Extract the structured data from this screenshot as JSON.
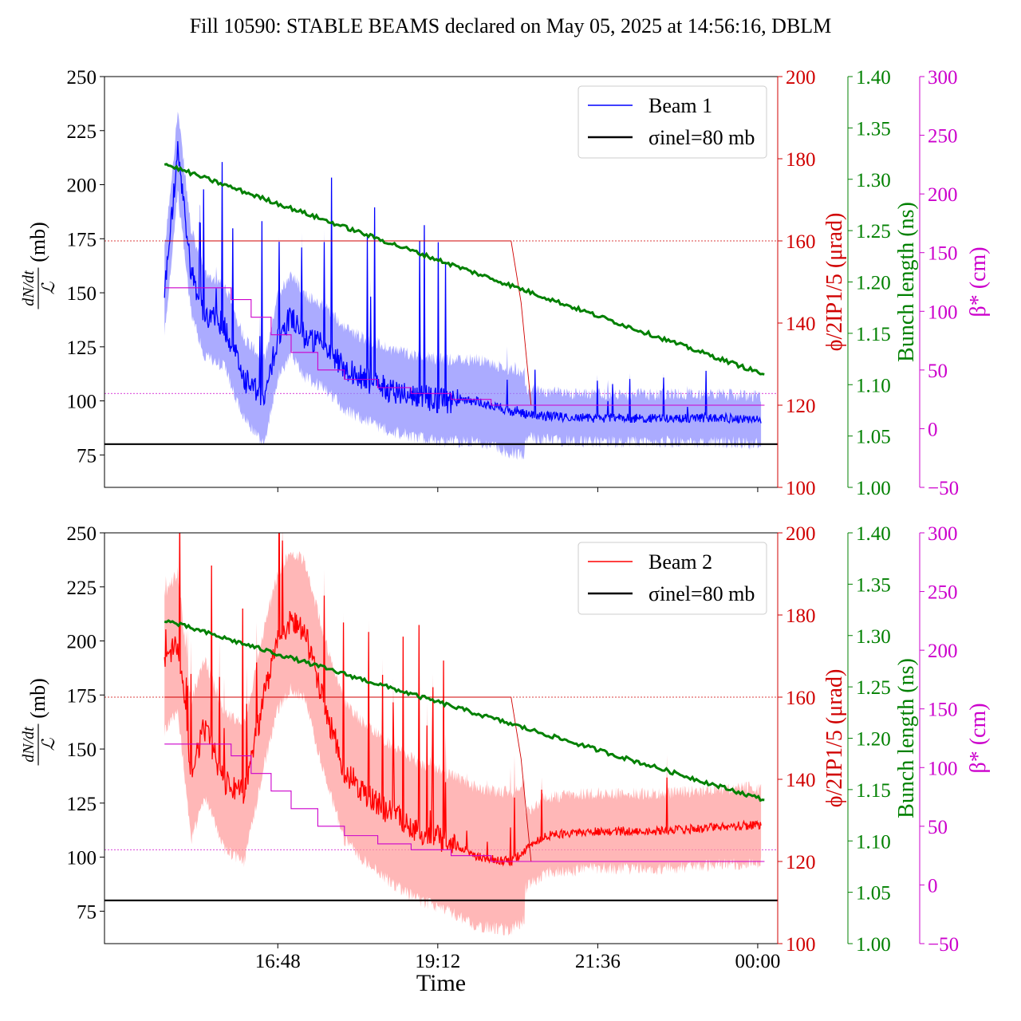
{
  "title": "Fill 10590: STABLE BEAMS declared on May 05, 2025 at 14:56:16, DBLM",
  "xlabel": "Time",
  "x_ticks": [
    "16:48",
    "19:12",
    "21:36",
    "00:00"
  ],
  "colors": {
    "beam1": "#0000ff",
    "beam1_band": "#8888ff",
    "beam2": "#ff0000",
    "beam2_band": "#ff9999",
    "angle": "#d00000",
    "bunch": "#008000",
    "beta": "#cc00cc",
    "sigma": "#000000"
  },
  "chart_data": [
    {
      "type": "line",
      "panel": "top",
      "ylabel": {
        "num": "dN/dt",
        "den": "ℒ",
        "unit": "(mb)"
      },
      "ylim": [
        60,
        250
      ],
      "yticks": [
        "75",
        "100",
        "125",
        "150",
        "175",
        "200",
        "225",
        "250"
      ],
      "right_axes": [
        {
          "label": "ϕ/2IP1/5 (μrad)",
          "ylim": [
            100,
            200
          ],
          "ticks": [
            "100",
            "120",
            "140",
            "160",
            "180",
            "200"
          ]
        },
        {
          "label": "Bunch length (ns)",
          "ylim": [
            1.0,
            1.4
          ],
          "ticks": [
            "1.00",
            "1.05",
            "1.10",
            "1.15",
            "1.20",
            "1.25",
            "1.30",
            "1.35",
            "1.40"
          ]
        },
        {
          "label": "β* (cm)",
          "ylim": [
            -50,
            300
          ],
          "ticks": [
            "−50",
            "0",
            "50",
            "100",
            "150",
            "200",
            "250",
            "300"
          ]
        }
      ],
      "legend": [
        "Beam 1",
        "σinel=80 mb"
      ],
      "legend_position": "top-right",
      "x_hours": [
        15.1,
        15.3,
        15.5,
        15.7,
        16.0,
        16.3,
        16.6,
        16.8,
        17.0,
        17.2,
        17.5,
        17.8,
        18.1,
        18.5,
        18.9,
        19.3,
        19.8,
        20.3,
        20.8,
        21.5,
        22.5,
        23.5,
        24.05
      ],
      "series": [
        {
          "name": "Beam 1",
          "values": [
            150,
            215,
            160,
            140,
            135,
            110,
            100,
            130,
            140,
            130,
            125,
            115,
            110,
            105,
            102,
            100,
            100,
            95,
            93,
            92,
            92,
            92,
            91
          ]
        },
        {
          "name": "σinel=80 mb",
          "values": [
            80,
            80
          ]
        }
      ],
      "crossing_angle_urad": {
        "x_hours": [
          15.1,
          20.3,
          20.45,
          20.6,
          24.1
        ],
        "values": [
          160,
          160,
          145,
          120,
          120
        ]
      },
      "bunch_length_ns": {
        "x_hours": [
          15.1,
          24.1
        ],
        "values": [
          1.315,
          1.11
        ]
      },
      "beta_star_cm": {
        "x_hours": [
          15.1,
          15.9,
          16.1,
          16.4,
          16.7,
          17.0,
          17.4,
          17.8,
          18.3,
          18.8,
          19.4,
          20.0,
          24.1
        ],
        "values": [
          120,
          120,
          110,
          95,
          80,
          65,
          50,
          42,
          35,
          30,
          25,
          20,
          20
        ]
      },
      "reference_lines": {
        "crossing_angle_urad": 160,
        "beta_star_cm": 30
      }
    },
    {
      "type": "line",
      "panel": "bottom",
      "ylabel": {
        "num": "dN/dt",
        "den": "ℒ",
        "unit": "(mb)"
      },
      "ylim": [
        60,
        250
      ],
      "yticks": [
        "75",
        "100",
        "125",
        "150",
        "175",
        "200",
        "225",
        "250"
      ],
      "right_axes": [
        {
          "label": "ϕ/2IP1/5 (μrad)",
          "ylim": [
            100,
            200
          ],
          "ticks": [
            "100",
            "120",
            "140",
            "160",
            "180",
            "200"
          ]
        },
        {
          "label": "Bunch length (ns)",
          "ylim": [
            1.0,
            1.4
          ],
          "ticks": [
            "1.00",
            "1.05",
            "1.10",
            "1.15",
            "1.20",
            "1.25",
            "1.30",
            "1.35",
            "1.40"
          ]
        },
        {
          "label": "β* (cm)",
          "ylim": [
            -50,
            300
          ],
          "ticks": [
            "−50",
            "0",
            "50",
            "100",
            "150",
            "200",
            "250",
            "300"
          ]
        }
      ],
      "legend": [
        "Beam 2",
        "σinel=80 mb"
      ],
      "legend_position": "top-right",
      "x_hours": [
        15.1,
        15.3,
        15.5,
        15.7,
        16.0,
        16.3,
        16.6,
        16.8,
        17.0,
        17.2,
        17.5,
        17.8,
        18.1,
        18.5,
        18.9,
        19.3,
        19.8,
        20.3,
        20.8,
        21.5,
        22.5,
        23.5,
        24.05
      ],
      "series": [
        {
          "name": "Beam 2",
          "values": [
            190,
            200,
            140,
            160,
            135,
            130,
            175,
            200,
            210,
            205,
            170,
            140,
            130,
            120,
            112,
            108,
            100,
            98,
            110,
            112,
            112,
            114,
            115
          ]
        },
        {
          "name": "σinel=80 mb",
          "values": [
            80,
            80
          ]
        }
      ],
      "crossing_angle_urad": {
        "x_hours": [
          15.1,
          20.3,
          20.45,
          20.6,
          24.1
        ],
        "values": [
          160,
          160,
          145,
          120,
          120
        ]
      },
      "bunch_length_ns": {
        "x_hours": [
          15.1,
          24.1
        ],
        "values": [
          1.315,
          1.14
        ]
      },
      "beta_star_cm": {
        "x_hours": [
          15.1,
          15.9,
          16.1,
          16.4,
          16.7,
          17.0,
          17.4,
          17.8,
          18.3,
          18.8,
          19.4,
          20.0,
          24.1
        ],
        "values": [
          120,
          120,
          110,
          95,
          80,
          65,
          50,
          42,
          35,
          30,
          25,
          20,
          20
        ]
      },
      "reference_lines": {
        "crossing_angle_urad": 160,
        "beta_star_cm": 30
      }
    }
  ]
}
